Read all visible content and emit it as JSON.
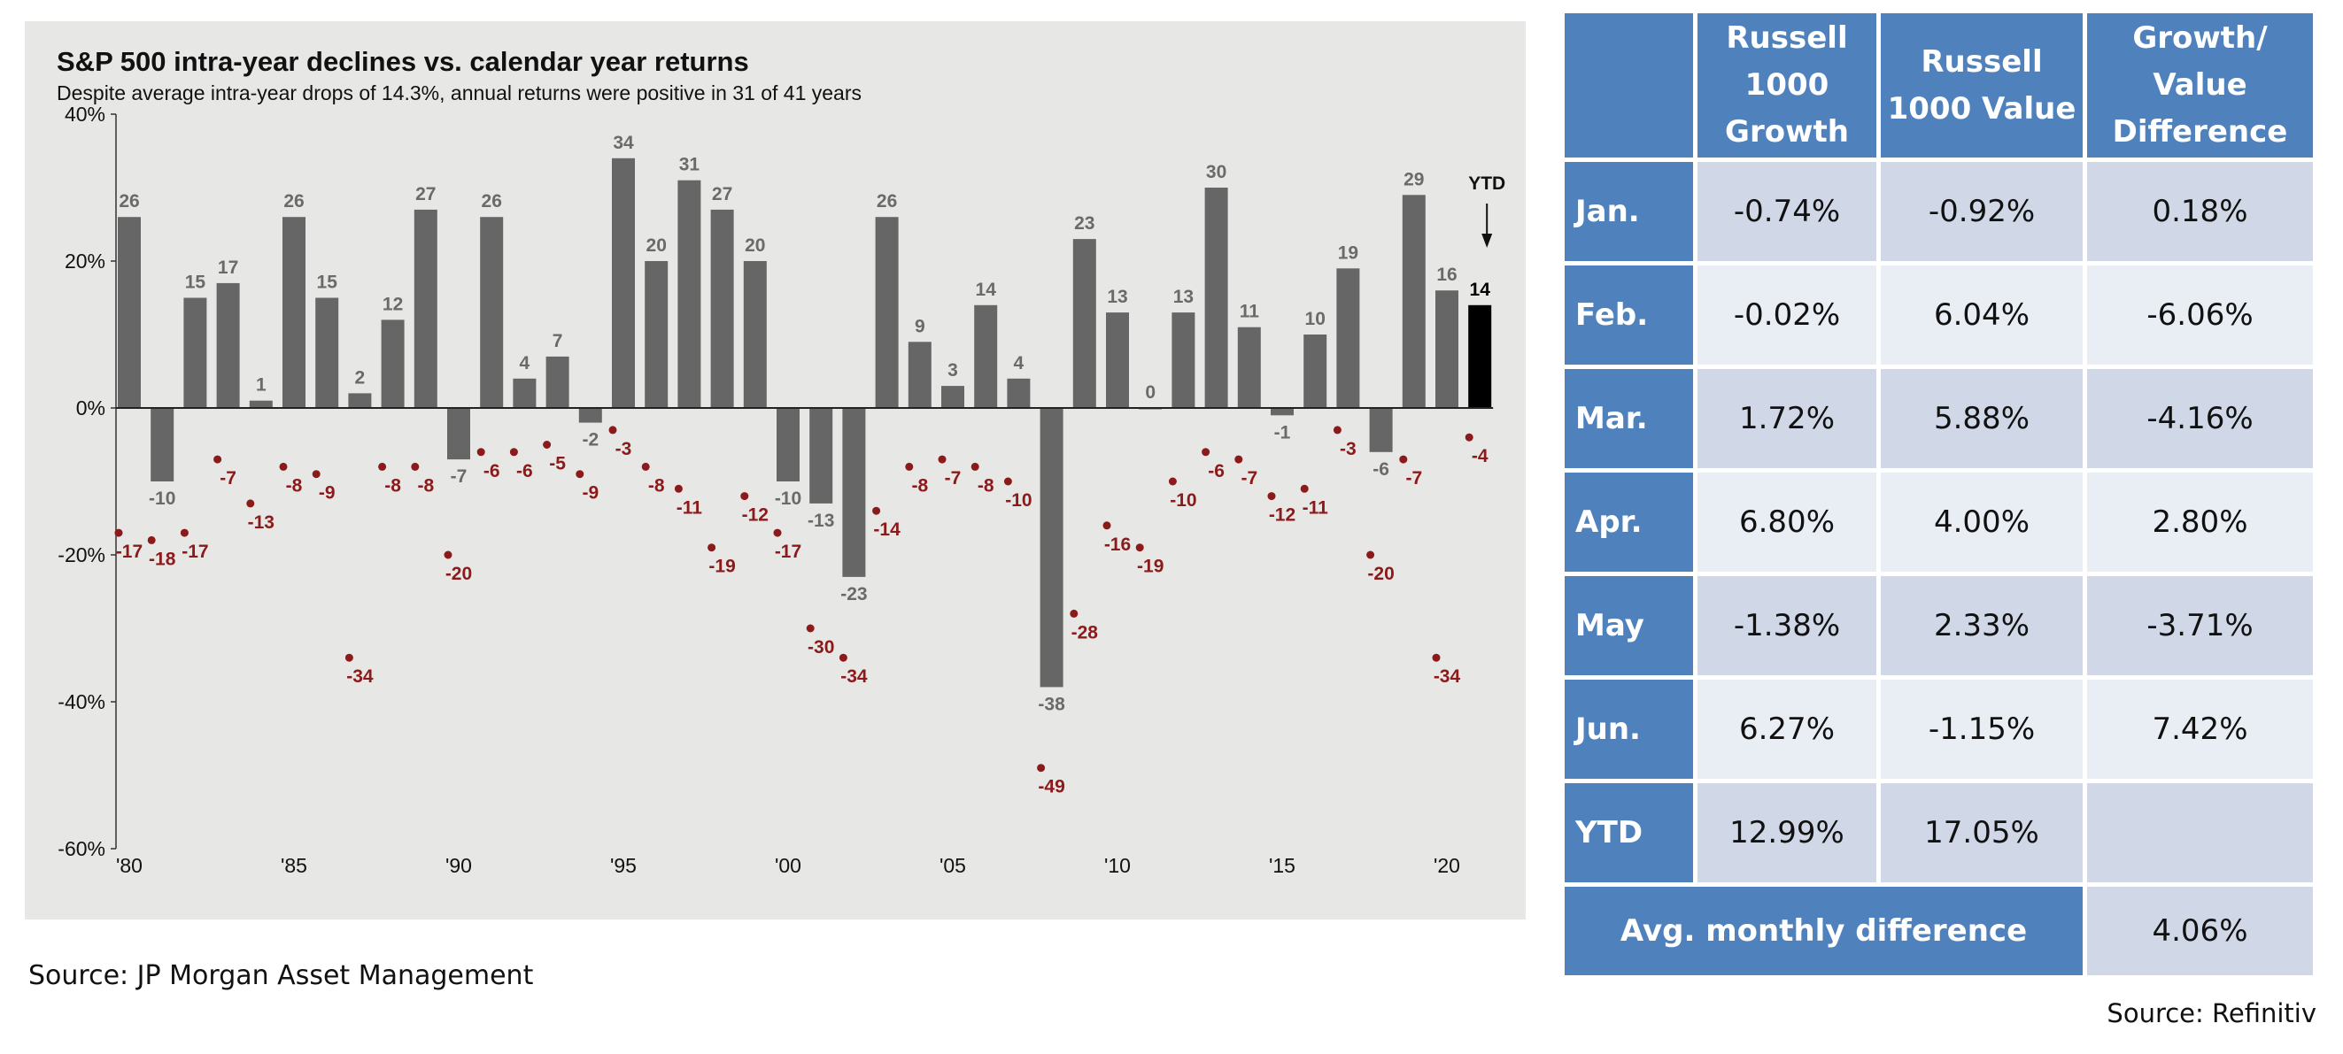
{
  "chart_data": {
    "type": "bar",
    "title": "S&P 500 intra-year declines vs. calendar year returns",
    "subtitle": "Despite average intra-year drops of 14.3%, annual returns were positive in 31 of 41 years",
    "ylim": [
      -60,
      40
    ],
    "y_ticks": [
      "40%",
      "20%",
      "0%",
      "-20%",
      "-40%",
      "-60%"
    ],
    "x_ticks": [
      "'80",
      "'85",
      "'90",
      "'95",
      "'00",
      "'05",
      "'10",
      "'15",
      "'20"
    ],
    "x": [
      1980,
      1981,
      1982,
      1983,
      1984,
      1985,
      1986,
      1987,
      1988,
      1989,
      1990,
      1991,
      1992,
      1993,
      1994,
      1995,
      1996,
      1997,
      1998,
      1999,
      2000,
      2001,
      2002,
      2003,
      2004,
      2005,
      2006,
      2007,
      2008,
      2009,
      2010,
      2011,
      2012,
      2013,
      2014,
      2015,
      2016,
      2017,
      2018,
      2019,
      2020,
      2021
    ],
    "series": [
      {
        "values": [
          26,
          -10,
          15,
          17,
          1,
          26,
          15,
          2,
          12,
          27,
          -7,
          26,
          4,
          7,
          -2,
          34,
          20,
          31,
          27,
          20,
          -10,
          -13,
          -23,
          26,
          9,
          3,
          14,
          4,
          -38,
          23,
          13,
          0,
          13,
          30,
          11,
          -1,
          10,
          19,
          -6,
          29,
          16,
          14
        ],
        "labels": [
          "26",
          "-10",
          "15",
          "17",
          "1",
          "26",
          "15",
          "2",
          "12",
          "27",
          "-7",
          "26",
          "4",
          "7",
          "-2",
          "34",
          "20",
          "31",
          "27",
          "20",
          "-10",
          "-13",
          "-23",
          "26",
          "9",
          "3",
          "14",
          "4",
          "-38",
          "23",
          "13",
          "0",
          "13",
          "30",
          "11",
          "-1",
          "10",
          "19",
          "-6",
          "29",
          "16",
          "14"
        ],
        "color": "#666666",
        "highlight_color": "#000000",
        "highlight_index": 41
      },
      {
        "values": [
          -17,
          -18,
          -17,
          -7,
          -13,
          -8,
          -9,
          -34,
          -8,
          -8,
          -20,
          -6,
          -6,
          -5,
          -9,
          -3,
          -8,
          -11,
          -19,
          -12,
          -17,
          -30,
          -34,
          -14,
          -8,
          -7,
          -8,
          -10,
          -49,
          -28,
          -16,
          -19,
          -10,
          -6,
          -7,
          -12,
          -11,
          -3,
          -20,
          -7,
          -34,
          -4
        ],
        "labels": [
          "-17",
          "-18",
          "-17",
          "-7",
          "-13",
          "-8",
          "-9",
          "-34",
          "-8",
          "-8",
          "-20",
          "-6",
          "-6",
          "-5",
          "-9",
          "-3",
          "-8",
          "-11",
          "-19",
          "-12",
          "-17",
          "-30",
          "-34",
          "-14",
          "-8",
          "-7",
          "-8",
          "-10",
          "-49",
          "-28",
          "-16",
          "-19",
          "-10",
          "-6",
          "-7",
          "-12",
          "-11",
          "-3",
          "-20",
          "-7",
          "-34",
          "-4"
        ],
        "color": "#8b1a1a"
      }
    ],
    "annotations": [
      {
        "text": "YTD"
      }
    ],
    "grid": false,
    "background": "#e7e7e5"
  },
  "table": {
    "headers": [
      "",
      "Russell 1000 Growth",
      "Russell 1000 Value",
      "Growth/ Value Difference"
    ],
    "rows": [
      {
        "label": "Jan.",
        "growth": "-0.74%",
        "value": "-0.92%",
        "diff": "0.18%"
      },
      {
        "label": "Feb.",
        "growth": "-0.02%",
        "value": "6.04%",
        "diff": "-6.06%"
      },
      {
        "label": "Mar.",
        "growth": "1.72%",
        "value": "5.88%",
        "diff": "-4.16%"
      },
      {
        "label": "Apr.",
        "growth": "6.80%",
        "value": "4.00%",
        "diff": "2.80%"
      },
      {
        "label": "May",
        "growth": "-1.38%",
        "value": "2.33%",
        "diff": "-3.71%"
      },
      {
        "label": "Jun.",
        "growth": "6.27%",
        "value": "-1.15%",
        "diff": "7.42%"
      },
      {
        "label": "YTD",
        "growth": "12.99%",
        "value": "17.05%",
        "diff": ""
      }
    ],
    "footer": {
      "label": "Avg. monthly difference",
      "value": "4.06%"
    },
    "colors": {
      "header": "#4f81bd",
      "cell": "#d0d8e8",
      "cell_alt": "#e9edf4"
    }
  },
  "sources": {
    "left": "Source: JP Morgan Asset Management",
    "right": "Source: Refinitiv"
  }
}
